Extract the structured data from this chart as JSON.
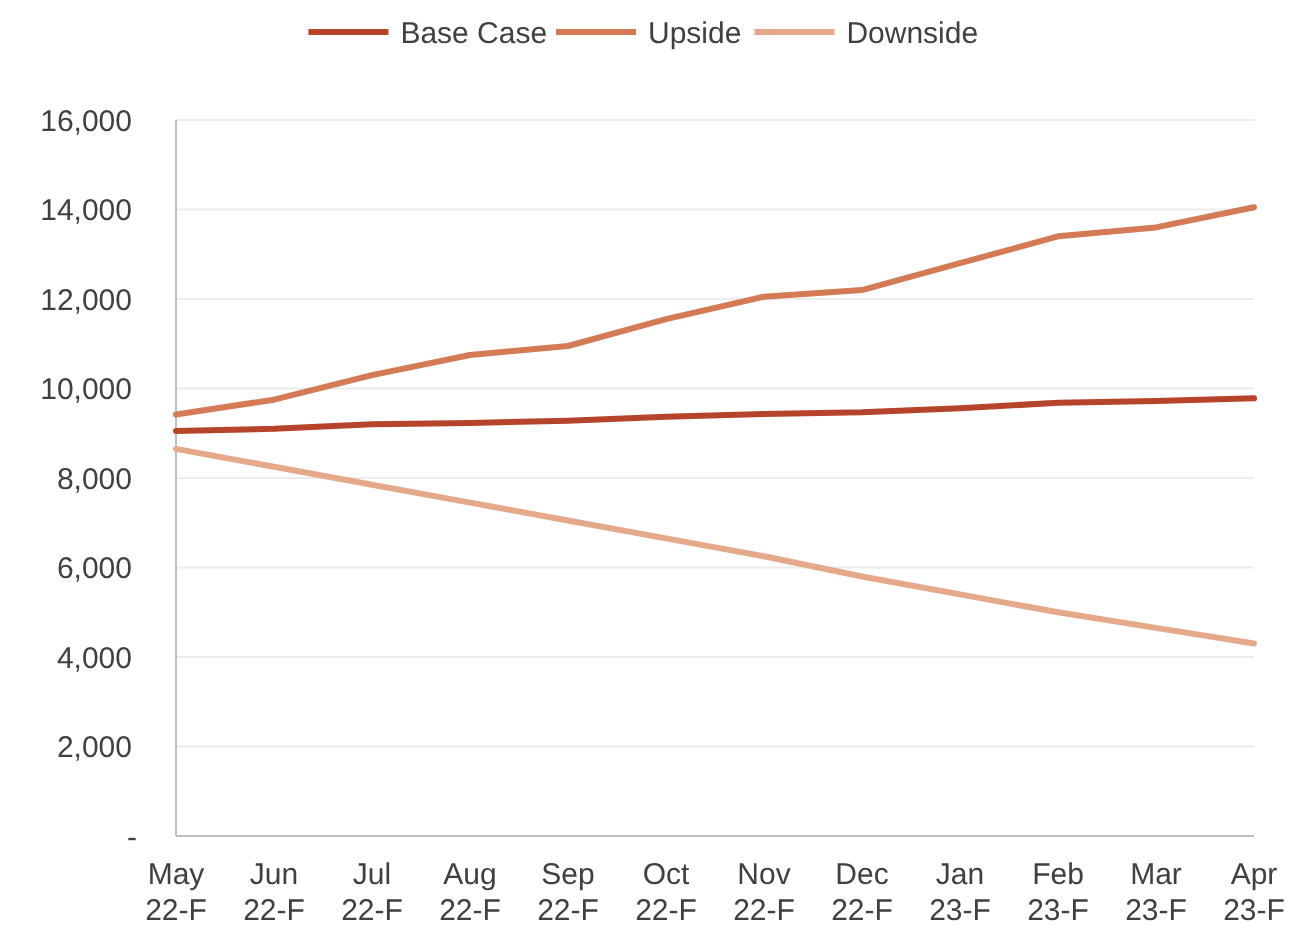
{
  "chart_data": {
    "type": "line",
    "categories": [
      "May 22-F",
      "Jun 22-F",
      "Jul 22-F",
      "Aug 22-F",
      "Sep 22-F",
      "Oct 22-F",
      "Nov 22-F",
      "Dec 22-F",
      "Jan 23-F",
      "Feb 23-F",
      "Mar 23-F",
      "Apr 23-F"
    ],
    "series": [
      {
        "name": "Base Case",
        "color": "#b5442a",
        "values": [
          9050,
          9100,
          9200,
          9230,
          9280,
          9370,
          9430,
          9470,
          9560,
          9680,
          9720,
          9780
        ]
      },
      {
        "name": "Upside",
        "color": "#d47a55",
        "values": [
          9420,
          9750,
          10300,
          10750,
          10950,
          11550,
          12050,
          12200,
          12800,
          13400,
          13600,
          14050
        ]
      },
      {
        "name": "Downside",
        "color": "#e5a98a",
        "values": [
          8650,
          8250,
          7850,
          7450,
          7050,
          6650,
          6250,
          5800,
          5400,
          5000,
          4650,
          4300
        ]
      }
    ],
    "ylim": [
      0,
      16000
    ],
    "yticks": [
      {
        "value": 0,
        "label": "-"
      },
      {
        "value": 2000,
        "label": "2,000"
      },
      {
        "value": 4000,
        "label": "4,000"
      },
      {
        "value": 6000,
        "label": "6,000"
      },
      {
        "value": 8000,
        "label": "8,000"
      },
      {
        "value": 10000,
        "label": "10,000"
      },
      {
        "value": 12000,
        "label": "12,000"
      },
      {
        "value": 14000,
        "label": "14,000"
      },
      {
        "value": 16000,
        "label": "16,000"
      }
    ],
    "grid": "y",
    "legend": "top",
    "marker": "none",
    "line_style": "solid"
  }
}
